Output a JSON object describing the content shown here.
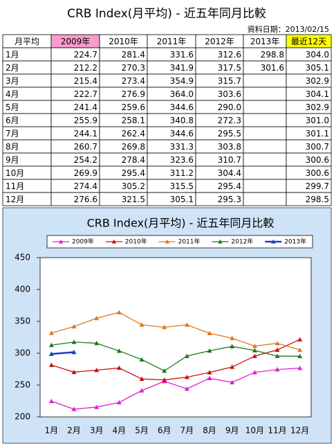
{
  "header": {
    "title": "CRB Index(月平均) - 近五年同月比較",
    "date": "資料日期：2013/02/15"
  },
  "table": {
    "columns": [
      "月平均",
      "2009年",
      "2010年",
      "2011年",
      "2012年",
      "2013年",
      "最近12天"
    ],
    "rows": [
      [
        "1月",
        "224.7",
        "281.4",
        "331.6",
        "312.6",
        "298.8",
        "304.0"
      ],
      [
        "2月",
        "212.2",
        "270.3",
        "341.9",
        "317.5",
        "301.6",
        "305.1"
      ],
      [
        "3月",
        "215.4",
        "273.4",
        "354.9",
        "315.7",
        null,
        "302.9"
      ],
      [
        "4月",
        "222.7",
        "276.9",
        "364.0",
        "303.6",
        null,
        "304.1"
      ],
      [
        "5月",
        "241.4",
        "259.6",
        "344.6",
        "290.0",
        null,
        "302.9"
      ],
      [
        "6月",
        "255.9",
        "258.1",
        "340.8",
        "272.3",
        null,
        "301.0"
      ],
      [
        "7月",
        "244.1",
        "262.4",
        "344.6",
        "295.5",
        null,
        "301.1"
      ],
      [
        "8月",
        "260.7",
        "269.8",
        "331.3",
        "303.8",
        null,
        "300.7"
      ],
      [
        "9月",
        "254.2",
        "278.4",
        "323.6",
        "310.7",
        null,
        "300.6"
      ],
      [
        "10月",
        "269.9",
        "295.4",
        "311.2",
        "304.4",
        null,
        "300.6"
      ],
      [
        "11月",
        "274.4",
        "305.2",
        "315.5",
        "295.4",
        null,
        "299.7"
      ],
      [
        "12月",
        "276.6",
        "321.5",
        "305.1",
        "295.3",
        null,
        "298.5"
      ]
    ]
  },
  "chart_data": {
    "type": "line",
    "title": "CRB Index(月平均) - 近五年同月比較",
    "categories": [
      "1月",
      "2月",
      "3月",
      "4月",
      "5月",
      "6月",
      "7月",
      "8月",
      "9月",
      "10月",
      "11月",
      "12月"
    ],
    "series": [
      {
        "name": "2009年",
        "color": "#e020d0",
        "values": [
          224.7,
          212.2,
          215.4,
          222.7,
          241.4,
          255.9,
          244.1,
          260.7,
          254.2,
          269.9,
          274.4,
          276.6
        ]
      },
      {
        "name": "2010年",
        "color": "#cc1010",
        "values": [
          281.4,
          270.3,
          273.4,
          276.9,
          259.6,
          258.1,
          262.4,
          269.8,
          278.4,
          295.4,
          305.2,
          321.5
        ]
      },
      {
        "name": "2011年",
        "color": "#e07820",
        "values": [
          331.6,
          341.9,
          354.9,
          364.0,
          344.6,
          340.8,
          344.6,
          331.3,
          323.6,
          311.2,
          315.5,
          305.1
        ]
      },
      {
        "name": "2012年",
        "color": "#1a7a1a",
        "values": [
          312.6,
          317.5,
          315.7,
          303.6,
          290.0,
          272.3,
          295.5,
          303.8,
          310.7,
          304.4,
          295.4,
          295.3
        ]
      },
      {
        "name": "2013年",
        "color": "#1a3acc",
        "values": [
          298.8,
          301.6,
          null,
          null,
          null,
          null,
          null,
          null,
          null,
          null,
          null,
          null
        ]
      }
    ],
    "ylim": [
      200,
      450
    ],
    "yticks": [
      200,
      250,
      300,
      350,
      400,
      450
    ],
    "grid": false
  }
}
